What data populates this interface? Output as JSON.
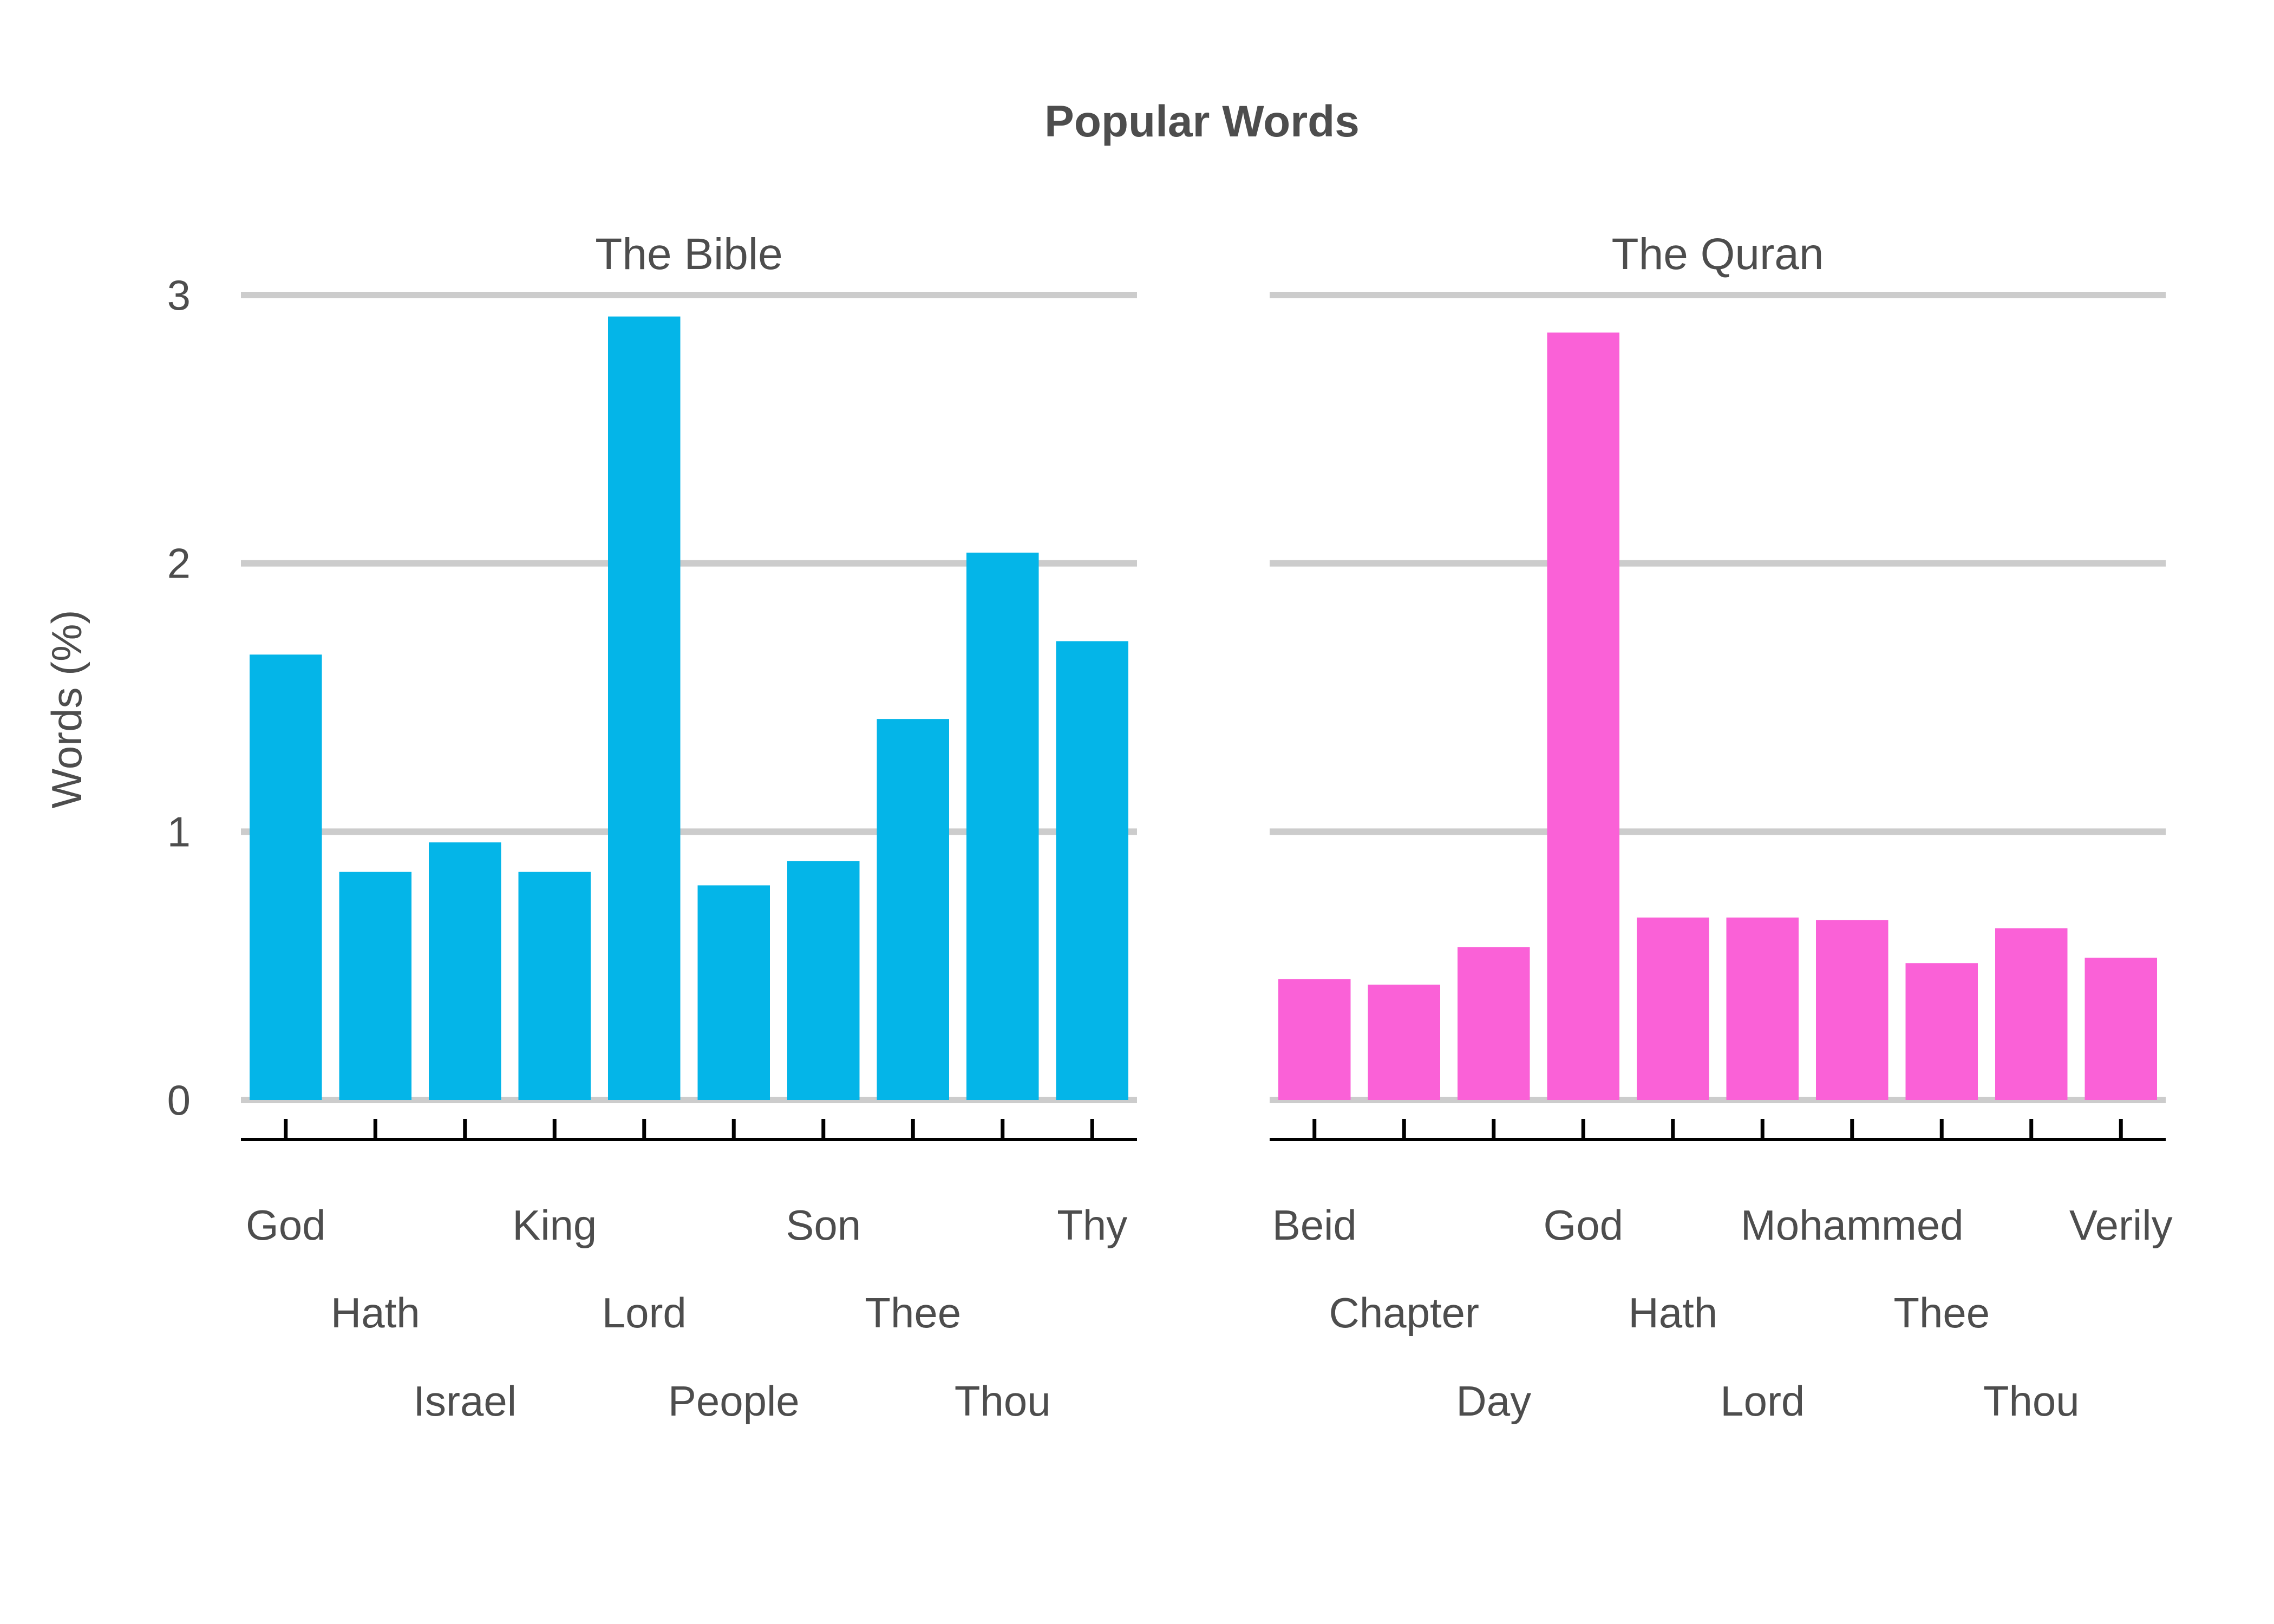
{
  "chart_data": {
    "type": "bar",
    "title": "Popular Words",
    "ylabel": "Words (%)",
    "ylim": [
      0,
      3
    ],
    "yticks": [
      0,
      1,
      2,
      3
    ],
    "grid": true,
    "facets": [
      {
        "title": "The Bible",
        "color": "#04b5e8",
        "categories": [
          "God",
          "Hath",
          "Israel",
          "King",
          "Lord",
          "People",
          "Son",
          "Thee",
          "Thou",
          "Thy"
        ],
        "values": [
          1.66,
          0.85,
          0.96,
          0.85,
          2.92,
          0.8,
          0.89,
          1.42,
          2.04,
          1.71
        ]
      },
      {
        "title": "The Quran",
        "color": "#fa61d7",
        "categories": [
          "Beid",
          "Chapter",
          "Day",
          "God",
          "Hath",
          "Lord",
          "Mohammed",
          "Thee",
          "Thou",
          "Verily"
        ],
        "values": [
          0.45,
          0.43,
          0.57,
          2.86,
          0.68,
          0.68,
          0.67,
          0.51,
          0.64,
          0.53
        ]
      }
    ]
  }
}
